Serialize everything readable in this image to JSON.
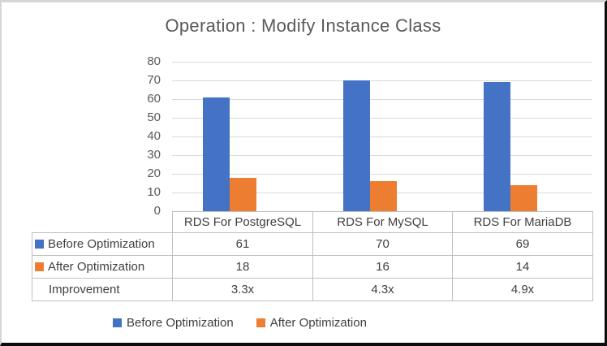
{
  "chart_data": {
    "type": "bar",
    "title": "Operation : Modify Instance Class",
    "categories": [
      "RDS For PostgreSQL",
      "RDS For MySQL",
      "RDS For MariaDB"
    ],
    "series": [
      {
        "name": "Before Optimization",
        "color": "#4472C4",
        "values": [
          61,
          70,
          69
        ]
      },
      {
        "name": "After Optimization",
        "color": "#ED7D31",
        "values": [
          18,
          16,
          14
        ]
      }
    ],
    "extra_table_rows": [
      {
        "label": "Improvement",
        "values": [
          "3.3x",
          "4.3x",
          "4.9x"
        ]
      }
    ],
    "y_axis": {
      "min": 0,
      "max": 80,
      "step": 10,
      "tick_labels": [
        "80",
        "70",
        "60",
        "50",
        "40",
        "30",
        "20",
        "10",
        "0"
      ]
    },
    "xlabel": "",
    "ylabel": "",
    "grid": true,
    "legend_position": "bottom",
    "data_table_shown": true,
    "colors": {
      "title_text": "#595959",
      "axis_text": "#595959",
      "table_text": "#404040",
      "gridline": "#D9D9D9",
      "table_border": "#BFBFBF",
      "background": "#FFFFFF",
      "frame_border_topleft": "#D6D6D6",
      "frame_border_bottomright": "#0D0D0D"
    }
  }
}
